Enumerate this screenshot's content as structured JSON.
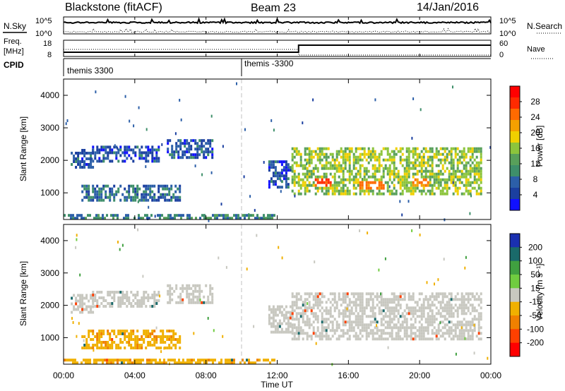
{
  "header": {
    "radar_label": "Blackstone (fitACF)",
    "beam_label": "Beam 23",
    "date_label": "14/Jan/2016"
  },
  "control_panels": {
    "nsky_label": "N.Sky",
    "nsearch_label": "N.Search",
    "noise_left_ticks": [
      "10^5",
      "10^0"
    ],
    "noise_right_ticks": [
      "10^5",
      "10^0"
    ],
    "freq_label": "Freq.",
    "freq_unit": "[MHz]",
    "freq_ticks": [
      "18",
      "8"
    ],
    "nave_label": "Nave",
    "nave_ticks": [
      "60",
      "0"
    ],
    "cpid_label": "CPID",
    "cpid_segments": [
      {
        "label": "themis 3300",
        "start_hour": 0,
        "end_hour": 10
      },
      {
        "label": "themis -3300",
        "start_hour": 10,
        "end_hour": 24
      }
    ]
  },
  "x_axis": {
    "label": "Time UT",
    "ticks": [
      "00:00",
      "04:00",
      "08:00",
      "12:00",
      "16:00",
      "20:00",
      "00:00"
    ],
    "tick_hours": [
      0,
      4,
      8,
      12,
      16,
      20,
      24
    ]
  },
  "chart_data": [
    {
      "type": "heatmap",
      "name": "power",
      "xlabel": "Time UT",
      "ylabel": "Slant Range [km]",
      "xlim": [
        0,
        24
      ],
      "ylim": [
        180,
        4500
      ],
      "y_ticks": [
        "1000",
        "2000",
        "3000",
        "4000"
      ],
      "y_tick_values": [
        1000,
        2000,
        3000,
        4000
      ],
      "colorbar": {
        "label": "Power [dB]",
        "ticks": [
          "28",
          "24",
          "20",
          "16",
          "12",
          "8",
          "4"
        ],
        "tick_values": [
          28,
          24,
          20,
          16,
          12,
          8,
          4
        ],
        "range": [
          0,
          30
        ]
      },
      "regions": [
        {
          "t0": 0.4,
          "t1": 1.6,
          "r0": 1750,
          "r1": 2350,
          "level": 6
        },
        {
          "t0": 1.6,
          "t1": 5.3,
          "r0": 1950,
          "r1": 2450,
          "level": 6
        },
        {
          "t0": 1.0,
          "t1": 6.5,
          "r0": 750,
          "r1": 1250,
          "level": 8
        },
        {
          "t0": 5.8,
          "t1": 8.3,
          "r0": 2050,
          "r1": 2650,
          "level": 6
        },
        {
          "t0": 11.5,
          "t1": 12.8,
          "r0": 1200,
          "r1": 2000,
          "level": 6
        },
        {
          "t0": 12.8,
          "t1": 23.5,
          "r0": 950,
          "r1": 2400,
          "level": 16
        },
        {
          "t0": 0.0,
          "t1": 12.0,
          "r0": 180,
          "r1": 350,
          "level": 10
        }
      ],
      "hotspots": [
        {
          "t0": 14.0,
          "t1": 15.0,
          "r0": 1200,
          "r1": 1500,
          "level": 27
        },
        {
          "t0": 16.5,
          "t1": 18.0,
          "r0": 1100,
          "r1": 1400,
          "level": 25
        },
        {
          "t0": 19.5,
          "t1": 20.5,
          "r0": 1250,
          "r1": 1500,
          "level": 24
        }
      ]
    },
    {
      "type": "heatmap",
      "name": "velocity",
      "xlabel": "Time UT",
      "ylabel": "Slant Range [km]",
      "xlim": [
        0,
        24
      ],
      "ylim": [
        180,
        4500
      ],
      "y_ticks": [
        "1000",
        "2000",
        "3000",
        "4000"
      ],
      "y_tick_values": [
        1000,
        2000,
        3000,
        4000
      ],
      "colorbar": {
        "label": "Velocity [m s⁻¹]",
        "ticks": [
          "200",
          "100",
          "50",
          "15",
          "-15",
          "-50",
          "-100",
          "-200"
        ],
        "tick_values": [
          200,
          100,
          50,
          15,
          -15,
          -50,
          -100,
          -200
        ]
      },
      "regions": [
        {
          "t0": 0.4,
          "t1": 1.6,
          "r0": 1750,
          "r1": 2350,
          "vel": 0
        },
        {
          "t0": 1.6,
          "t1": 5.3,
          "r0": 1950,
          "r1": 2450,
          "vel": 0
        },
        {
          "t0": 1.0,
          "t1": 6.5,
          "r0": 700,
          "r1": 1250,
          "vel": -40
        },
        {
          "t0": 5.8,
          "t1": 8.3,
          "r0": 2050,
          "r1": 2650,
          "vel": 0
        },
        {
          "t0": 11.5,
          "t1": 12.8,
          "r0": 1200,
          "r1": 2000,
          "vel": 0
        },
        {
          "t0": 12.8,
          "t1": 23.5,
          "r0": 950,
          "r1": 2400,
          "vel": 0
        },
        {
          "t0": 0.0,
          "t1": 12.0,
          "r0": 180,
          "r1": 350,
          "vel": -40
        }
      ]
    }
  ]
}
